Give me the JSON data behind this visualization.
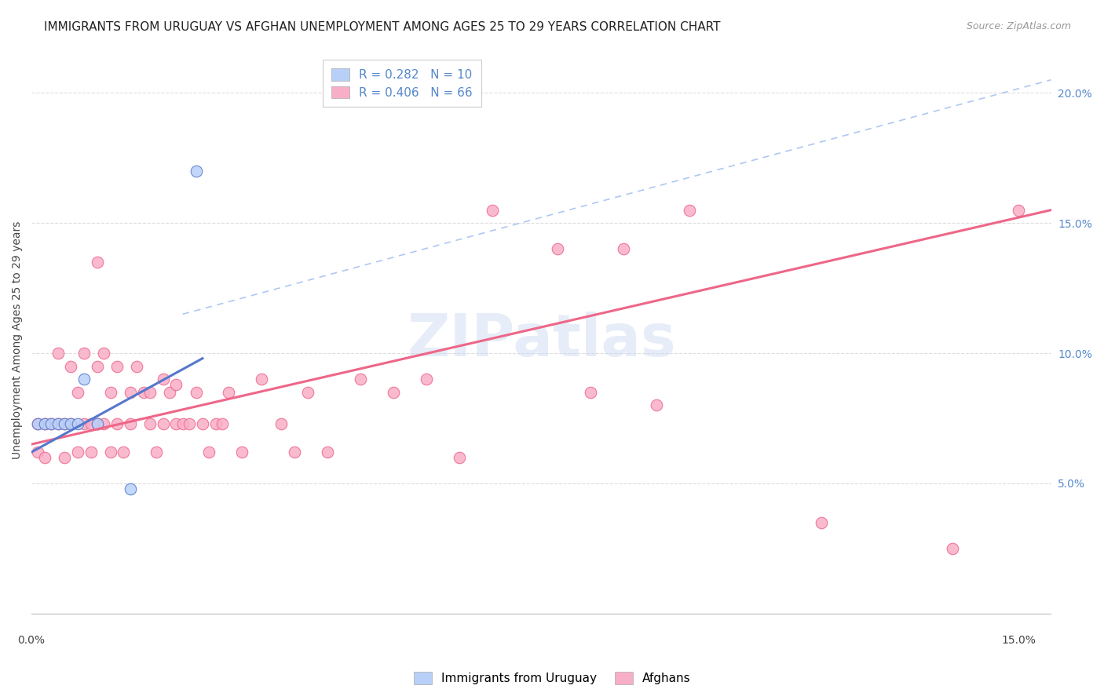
{
  "title": "IMMIGRANTS FROM URUGUAY VS AFGHAN UNEMPLOYMENT AMONG AGES 25 TO 29 YEARS CORRELATION CHART",
  "source": "Source: ZipAtlas.com",
  "ylabel": "Unemployment Among Ages 25 to 29 years",
  "xlim": [
    0.0,
    0.155
  ],
  "ylim": [
    -0.005,
    0.215
  ],
  "xtick_positions": [
    0.0,
    0.03,
    0.06,
    0.09,
    0.12,
    0.15
  ],
  "xtick_labels": [
    "0.0%",
    "",
    "",
    "",
    "",
    "15.0%"
  ],
  "yticks_right": [
    0.05,
    0.1,
    0.15,
    0.2
  ],
  "ytick_labels_right": [
    "5.0%",
    "10.0%",
    "15.0%",
    "20.0%"
  ],
  "color_uruguay": "#b8d0f8",
  "color_afghan": "#f9aec8",
  "color_line_uruguay": "#5577cc",
  "color_line_afghan": "#ee6688",
  "color_dashed": "#99bbee",
  "watermark": "ZIPatlas",
  "background_color": "#ffffff",
  "title_fontsize": 11,
  "source_fontsize": 9,
  "axis_label_fontsize": 10,
  "tick_fontsize": 10,
  "legend_fontsize": 11,
  "uy_x": [
    0.001,
    0.002,
    0.003,
    0.004,
    0.005,
    0.006,
    0.007,
    0.008,
    0.01,
    0.015,
    0.025
  ],
  "uy_y": [
    0.073,
    0.073,
    0.073,
    0.073,
    0.073,
    0.073,
    0.073,
    0.09,
    0.073,
    0.048,
    0.17
  ],
  "af_x": [
    0.001,
    0.001,
    0.002,
    0.002,
    0.003,
    0.004,
    0.004,
    0.005,
    0.005,
    0.006,
    0.006,
    0.007,
    0.007,
    0.008,
    0.008,
    0.009,
    0.009,
    0.01,
    0.01,
    0.011,
    0.011,
    0.012,
    0.012,
    0.013,
    0.013,
    0.014,
    0.015,
    0.015,
    0.016,
    0.017,
    0.018,
    0.018,
    0.019,
    0.02,
    0.02,
    0.021,
    0.022,
    0.022,
    0.023,
    0.024,
    0.025,
    0.026,
    0.027,
    0.028,
    0.029,
    0.03,
    0.032,
    0.035,
    0.038,
    0.04,
    0.042,
    0.045,
    0.05,
    0.055,
    0.06,
    0.065,
    0.07,
    0.08,
    0.085,
    0.09,
    0.095,
    0.1,
    0.12,
    0.14,
    0.15,
    0.01
  ],
  "af_y": [
    0.073,
    0.062,
    0.073,
    0.06,
    0.073,
    0.073,
    0.1,
    0.073,
    0.06,
    0.095,
    0.073,
    0.085,
    0.062,
    0.1,
    0.073,
    0.073,
    0.062,
    0.095,
    0.073,
    0.1,
    0.073,
    0.085,
    0.062,
    0.095,
    0.073,
    0.062,
    0.085,
    0.073,
    0.095,
    0.085,
    0.085,
    0.073,
    0.062,
    0.09,
    0.073,
    0.085,
    0.088,
    0.073,
    0.073,
    0.073,
    0.085,
    0.073,
    0.062,
    0.073,
    0.073,
    0.085,
    0.062,
    0.09,
    0.073,
    0.062,
    0.085,
    0.062,
    0.09,
    0.085,
    0.09,
    0.06,
    0.155,
    0.14,
    0.085,
    0.14,
    0.08,
    0.155,
    0.035,
    0.025,
    0.155,
    0.135
  ],
  "af_line_x": [
    0.0,
    0.155
  ],
  "af_line_y": [
    0.065,
    0.155
  ],
  "uy_line_x": [
    0.0,
    0.026
  ],
  "uy_line_y": [
    0.062,
    0.098
  ],
  "dash_line_x": [
    0.023,
    0.155
  ],
  "dash_line_y": [
    0.115,
    0.205
  ]
}
